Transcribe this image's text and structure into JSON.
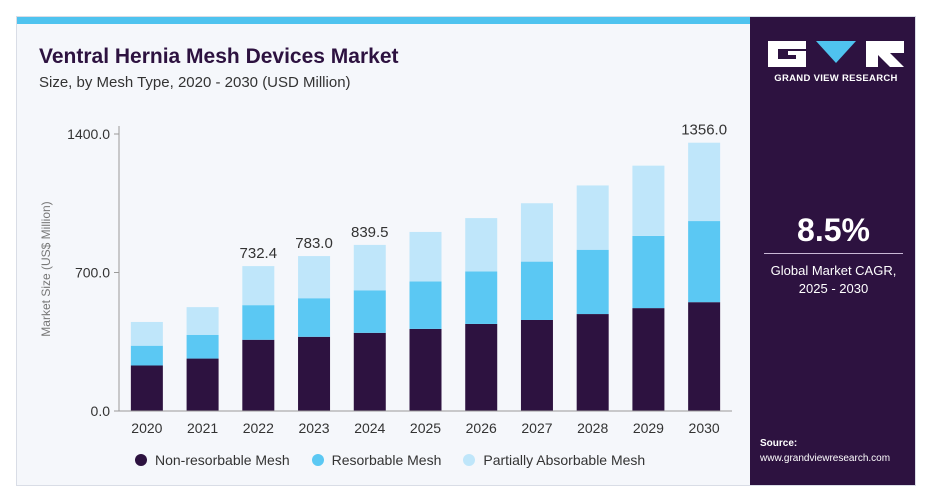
{
  "title": "Ventral Hernia Mesh Devices Market",
  "subtitle": "Size, by Mesh Type, 2020 - 2030 (USD Million)",
  "colors": {
    "accent_bar": "#4fc3ef",
    "sidebar": "#2d1240",
    "non_resorbable": "#2d1240",
    "resorbable": "#5bc8f3",
    "partially_absorbable": "#bfe6fa"
  },
  "brand": {
    "logo_text": "GRAND VIEW RESEARCH",
    "cagr_value": "8.5%",
    "cagr_label_line1": "Global Market CAGR,",
    "cagr_label_line2": "2025 - 2030",
    "source_label": "Source:",
    "source_url": "www.grandviewresearch.com"
  },
  "chart_data": {
    "type": "bar",
    "stacked": true,
    "ylabel": "Market Size (US$ Million)",
    "ylim": [
      0,
      1400
    ],
    "yticks": [
      0,
      700,
      1400
    ],
    "ytick_labels": [
      "0.0",
      "700.0",
      "1400.0"
    ],
    "categories": [
      "2020",
      "2021",
      "2022",
      "2023",
      "2024",
      "2025",
      "2026",
      "2027",
      "2028",
      "2029",
      "2030"
    ],
    "series": [
      {
        "name": "Non-resorbable Mesh",
        "values": [
          230,
          265,
          360,
          375,
          395,
          415,
          440,
          460,
          490,
          520,
          550
        ]
      },
      {
        "name": "Resorbable Mesh",
        "values": [
          100,
          120,
          175,
          195,
          215,
          240,
          265,
          295,
          325,
          365,
          410
        ]
      },
      {
        "name": "Partially Absorbable Mesh",
        "values": [
          120,
          140,
          197.4,
          213,
          229.5,
          250,
          270,
          295,
          325,
          355,
          396
        ]
      }
    ],
    "totals_labels": {
      "2022": "732.4",
      "2023": "783.0",
      "2024": "839.5",
      "2030": "1356.0"
    },
    "legend_position": "bottom",
    "grid": false
  }
}
